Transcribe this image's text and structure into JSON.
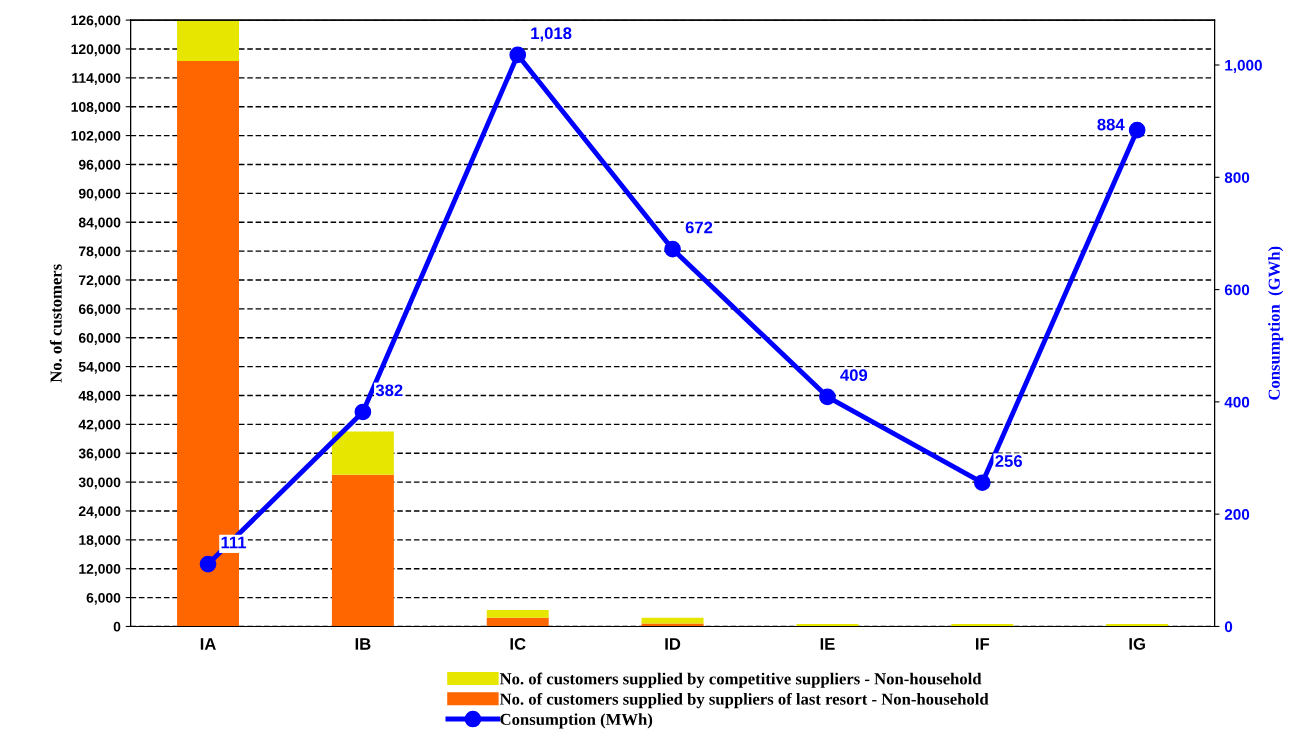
{
  "chart_data": {
    "type": "bar",
    "stacked": true,
    "ylabel": "No. of customers",
    "y2label": "Consumption  (GWh)",
    "categories": [
      "IA",
      "IB",
      "IC",
      "ID",
      "IE",
      "IF",
      "IG"
    ],
    "series": [
      {
        "name": "No. of customers supplied by suppliers of last resort - Non-household",
        "color": "#ff6600",
        "values": [
          117500,
          31500,
          1800,
          600,
          null,
          null,
          null
        ]
      },
      {
        "name": "No. of customers supplied by competitive suppliers - Non-household",
        "color": "#e6e600",
        "values": [
          8500,
          9000,
          1600,
          1200,
          500,
          500,
          500
        ]
      },
      {
        "name": "Consumption (MWh)",
        "type": "line",
        "axis": "y2",
        "color": "#0000ff",
        "marker": "circle",
        "values": [
          111,
          382,
          1018,
          672,
          409,
          256,
          884
        ],
        "value_labels": [
          "111",
          "382",
          "1,018",
          "672",
          "409",
          "256",
          "884"
        ]
      }
    ],
    "ylim": [
      0,
      126000
    ],
    "yticks": [
      {
        "value": 0,
        "label": "0"
      },
      {
        "value": 6000,
        "label": "6,000"
      },
      {
        "value": 12000,
        "label": "12,000"
      },
      {
        "value": 18000,
        "label": "18,000"
      },
      {
        "value": 24000,
        "label": "24,000"
      },
      {
        "value": 30000,
        "label": "30,000"
      },
      {
        "value": 36000,
        "label": "36,000"
      },
      {
        "value": 42000,
        "label": "42,000"
      },
      {
        "value": 48000,
        "label": "48,000"
      },
      {
        "value": 54000,
        "label": "54,000"
      },
      {
        "value": 60000,
        "label": "60,000"
      },
      {
        "value": 66000,
        "label": "66,000"
      },
      {
        "value": 72000,
        "label": "72,000"
      },
      {
        "value": 78000,
        "label": "78,000"
      },
      {
        "value": 84000,
        "label": "84,000"
      },
      {
        "value": 90000,
        "label": "90,000"
      },
      {
        "value": 96000,
        "label": "96,000"
      },
      {
        "value": 102000,
        "label": "102,000"
      },
      {
        "value": 108000,
        "label": "108,000"
      },
      {
        "value": 114000,
        "label": "114,000"
      },
      {
        "value": 120000,
        "label": "120,000"
      },
      {
        "value": 126000,
        "label": "126,000"
      }
    ],
    "y2lim": [
      0,
      1080
    ],
    "y2ticks": [
      0,
      200,
      400,
      600,
      800,
      {
        "value": 1000,
        "label": "1,000"
      }
    ],
    "grid": "y",
    "legend": "bottom"
  }
}
